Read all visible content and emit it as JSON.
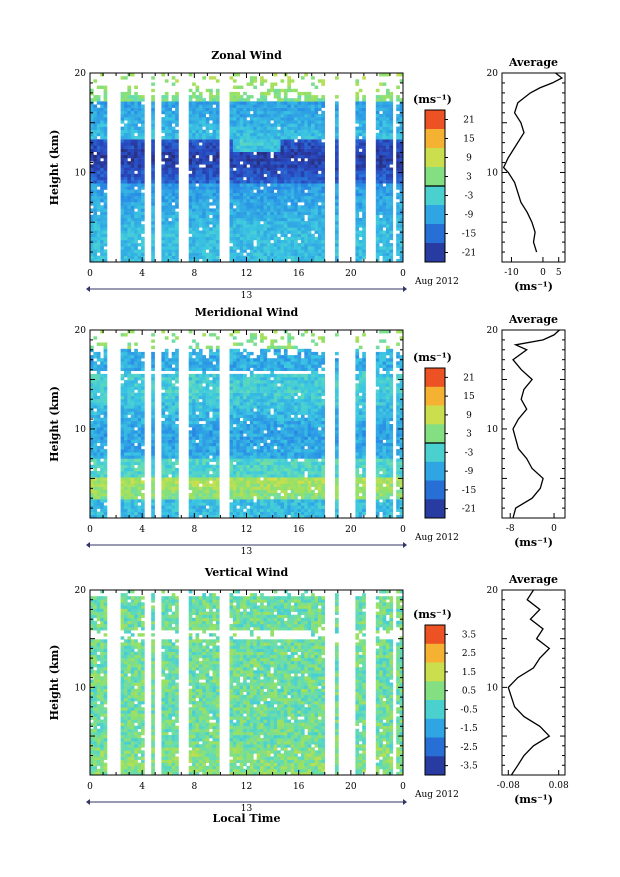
{
  "x_ticks": [
    "0",
    "4",
    "8",
    "12",
    "16",
    "20",
    "0"
  ],
  "bottom_axis": {
    "date_tick": "13",
    "month_label": "Aug 2012",
    "xlabel": "Local Time"
  },
  "panels": [
    {
      "title": "Zonal Wind",
      "ylabel": "Height (km)",
      "y_ticks": [
        "20",
        "10"
      ],
      "unit": "(ms⁻¹)",
      "cbar_ticks": [
        "21",
        "15",
        "9",
        "3",
        "-3",
        "-9",
        "-15",
        "-21"
      ],
      "cbar_range": [
        -24,
        24
      ],
      "zero_line_value": 0,
      "avg": {
        "title": "Average",
        "ticks": [
          "-10",
          "0",
          "5"
        ],
        "tick_values": [
          -10,
          0,
          5
        ],
        "xlim": [
          -13,
          7
        ],
        "unit": "(ms⁻¹)",
        "y_ticks": [
          "20",
          "10"
        ],
        "profile": [
          [
            -2,
            2
          ],
          [
            -3,
            3
          ],
          [
            -2.5,
            4
          ],
          [
            -3.5,
            5
          ],
          [
            -5,
            6
          ],
          [
            -7,
            7
          ],
          [
            -8,
            8
          ],
          [
            -9,
            9
          ],
          [
            -11,
            10
          ],
          [
            -12.5,
            10.5
          ],
          [
            -11,
            11.5
          ],
          [
            -9,
            12.5
          ],
          [
            -6,
            14
          ],
          [
            -7,
            15
          ],
          [
            -9,
            16
          ],
          [
            -8,
            17
          ],
          [
            -6,
            17.5
          ],
          [
            -4,
            18
          ],
          [
            -1,
            18.5
          ],
          [
            3,
            19
          ],
          [
            6,
            19.5
          ],
          [
            4,
            20
          ]
        ]
      }
    },
    {
      "title": "Meridional Wind",
      "ylabel": "Height (km)",
      "y_ticks": [
        "20",
        "10"
      ],
      "unit": "(ms⁻¹)",
      "cbar_ticks": [
        "21",
        "15",
        "9",
        "3",
        "-3",
        "-9",
        "-15",
        "-21"
      ],
      "cbar_range": [
        -24,
        24
      ],
      "zero_line_value": 0,
      "avg": {
        "title": "Average",
        "ticks": [
          "-8",
          "0"
        ],
        "tick_values": [
          -8,
          0
        ],
        "xlim": [
          -9.5,
          2
        ],
        "unit": "(ms⁻¹)",
        "y_ticks": [
          "20",
          "10"
        ],
        "profile": [
          [
            -7.5,
            1
          ],
          [
            -7,
            2
          ],
          [
            -4,
            3
          ],
          [
            -2.5,
            4
          ],
          [
            -2,
            5
          ],
          [
            -4,
            6
          ],
          [
            -5,
            7
          ],
          [
            -6.5,
            8
          ],
          [
            -7,
            9
          ],
          [
            -7.5,
            10
          ],
          [
            -6.5,
            11
          ],
          [
            -5,
            12
          ],
          [
            -6,
            13
          ],
          [
            -5.5,
            14
          ],
          [
            -4,
            15
          ],
          [
            -6,
            16
          ],
          [
            -7.5,
            17
          ],
          [
            -5,
            18
          ],
          [
            -7,
            18.5
          ],
          [
            -2,
            19
          ],
          [
            0,
            19.5
          ],
          [
            1,
            20
          ]
        ]
      }
    },
    {
      "title": "Vertical Wind",
      "ylabel": "Height (km)",
      "y_ticks": [
        "20",
        "10"
      ],
      "unit": "(ms⁻¹)",
      "cbar_ticks": [
        "3.5",
        "2.5",
        "1.5",
        "0.5",
        "-0.5",
        "-1.5",
        "-2.5",
        "-3.5"
      ],
      "cbar_range": [
        -4,
        4
      ],
      "zero_line_value": null,
      "avg": {
        "title": "Average",
        "ticks": [
          "-0.08",
          "0.08"
        ],
        "tick_values": [
          -0.08,
          0.08
        ],
        "xlim": [
          -0.1,
          0.1
        ],
        "unit": "(ms⁻¹)",
        "y_ticks": [
          "20",
          "10"
        ],
        "profile": [
          [
            -0.07,
            1
          ],
          [
            -0.05,
            2
          ],
          [
            -0.03,
            3
          ],
          [
            0.0,
            4
          ],
          [
            0.05,
            5
          ],
          [
            0.02,
            6
          ],
          [
            -0.03,
            7
          ],
          [
            -0.06,
            8
          ],
          [
            -0.07,
            9
          ],
          [
            -0.08,
            10
          ],
          [
            -0.05,
            11
          ],
          [
            0.0,
            12
          ],
          [
            0.02,
            13
          ],
          [
            0.05,
            14
          ],
          [
            0.01,
            15
          ],
          [
            0.03,
            16
          ],
          [
            -0.01,
            17
          ],
          [
            0.02,
            18
          ],
          [
            -0.02,
            19
          ],
          [
            0.0,
            20
          ]
        ]
      }
    }
  ],
  "chart_data": [
    {
      "type": "heatmap",
      "title": "Zonal Wind",
      "xlabel": "Local Time",
      "ylabel": "Height (km)",
      "x_range_hours": [
        0,
        24
      ],
      "ylim": [
        1,
        20
      ],
      "value_unit": "ms-1",
      "value_range": [
        -24,
        24
      ],
      "features": {
        "jet_minimum_height_km": 11.5,
        "jet_minimum_value": -21,
        "surface_value": -6
      }
    },
    {
      "type": "line",
      "title": "Average",
      "ylabel": "Height (km)",
      "xlabel": "(ms-1)",
      "ylim": [
        1,
        20
      ],
      "xlim": [
        -13,
        7
      ],
      "x": [
        -2,
        -3,
        -2.5,
        -3.5,
        -5,
        -7,
        -8,
        -9,
        -11,
        -12.5,
        -11,
        -9,
        -6,
        -7,
        -9,
        -8,
        -6,
        -4,
        -1,
        3,
        6,
        4
      ],
      "y": [
        2,
        3,
        4,
        5,
        6,
        7,
        8,
        9,
        10,
        10.5,
        11.5,
        12.5,
        14,
        15,
        16,
        17,
        17.5,
        18,
        18.5,
        19,
        19.5,
        20
      ]
    },
    {
      "type": "heatmap",
      "title": "Meridional Wind",
      "xlabel": "Local Time",
      "ylabel": "Height (km)",
      "x_range_hours": [
        0,
        24
      ],
      "ylim": [
        1,
        20
      ],
      "value_unit": "ms-1",
      "value_range": [
        -24,
        24
      ],
      "features": {
        "low_level_value": 3,
        "mid_level_value": -9
      }
    },
    {
      "type": "line",
      "title": "Average",
      "ylabel": "Height (km)",
      "xlabel": "(ms-1)",
      "ylim": [
        1,
        20
      ],
      "xlim": [
        -9.5,
        2
      ],
      "x": [
        -7.5,
        -7,
        -4,
        -2.5,
        -2,
        -4,
        -5,
        -6.5,
        -7,
        -7.5,
        -6.5,
        -5,
        -6,
        -5.5,
        -4,
        -6,
        -7.5,
        -5,
        -7,
        -2,
        0,
        1
      ],
      "y": [
        1,
        2,
        3,
        4,
        5,
        6,
        7,
        8,
        9,
        10,
        11,
        12,
        13,
        14,
        15,
        16,
        17,
        18,
        18.5,
        19,
        19.5,
        20
      ]
    },
    {
      "type": "heatmap",
      "title": "Vertical Wind",
      "xlabel": "Local Time",
      "ylabel": "Height (km)",
      "x_range_hours": [
        0,
        24
      ],
      "ylim": [
        1,
        20
      ],
      "value_unit": "ms-1",
      "value_range": [
        -4,
        4
      ],
      "features": {
        "typical_value": 0.3
      }
    },
    {
      "type": "line",
      "title": "Average",
      "ylabel": "Height (km)",
      "xlabel": "(ms-1)",
      "ylim": [
        1,
        20
      ],
      "xlim": [
        -0.1,
        0.1
      ],
      "x": [
        -0.07,
        -0.05,
        -0.03,
        0.0,
        0.05,
        0.02,
        -0.03,
        -0.06,
        -0.07,
        -0.08,
        -0.05,
        0.0,
        0.02,
        0.05,
        0.01,
        0.03,
        -0.01,
        0.02,
        -0.02,
        0.0
      ],
      "y": [
        1,
        2,
        3,
        4,
        5,
        6,
        7,
        8,
        9,
        10,
        11,
        12,
        13,
        14,
        15,
        16,
        17,
        18,
        19,
        20
      ]
    }
  ]
}
